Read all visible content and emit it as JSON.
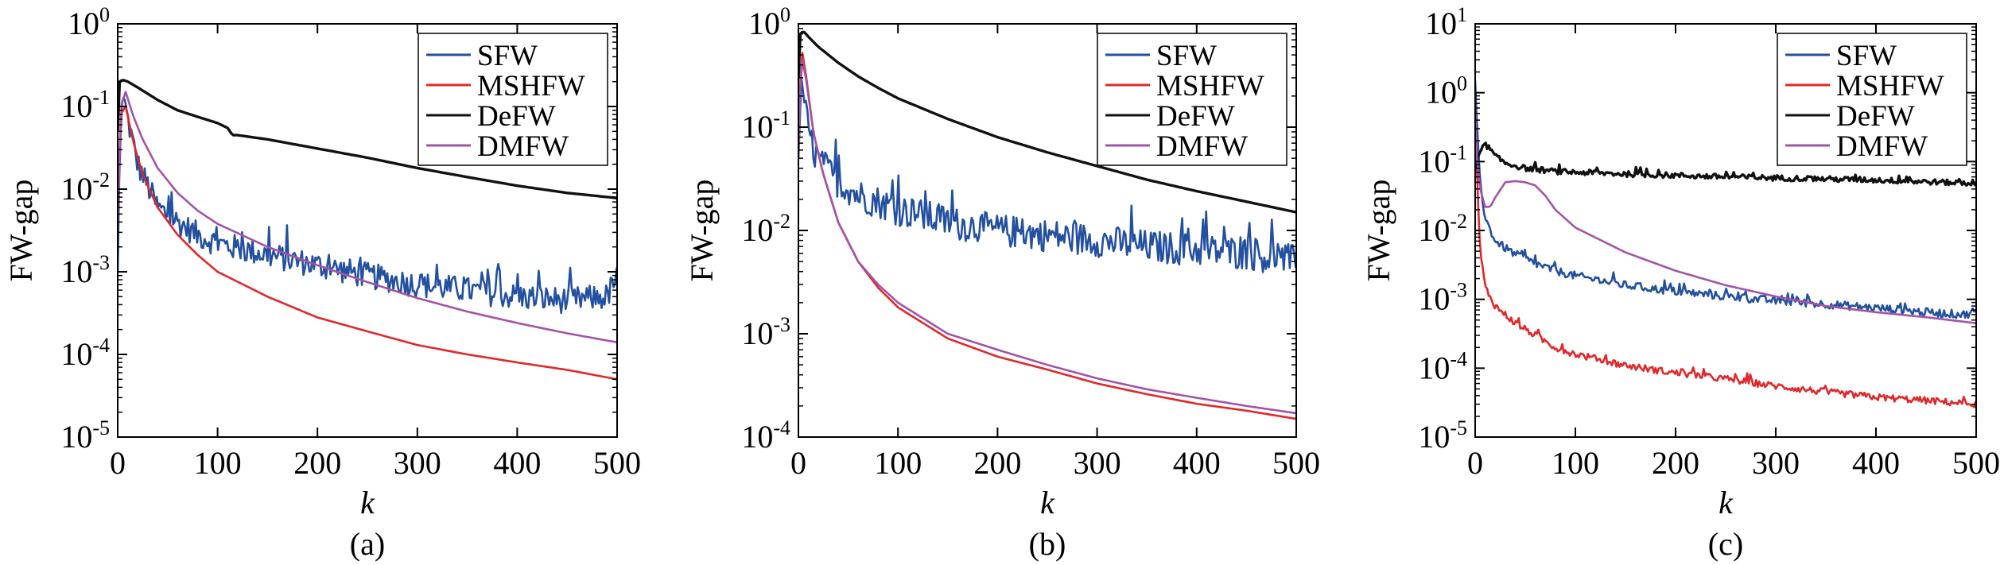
{
  "figure": {
    "ylabel": "FW-gap",
    "xlabel": "k",
    "series_colors": {
      "SFW": "#2350a0",
      "MSHFW": "#e0282a",
      "DeFW": "#000000",
      "DMFW": "#a254a8"
    }
  },
  "chart_data": [
    {
      "type": "line",
      "panel_label": "(a)",
      "xlabel": "k",
      "ylabel": "FW-gap",
      "yscale": "log",
      "xlim": [
        0,
        500
      ],
      "ylim_exp": [
        -5,
        0
      ],
      "xticks": [
        "0",
        "100",
        "200",
        "300",
        "400",
        "500"
      ],
      "yticks": [
        {
          "base": "10",
          "exp": "-5"
        },
        {
          "base": "10",
          "exp": "-4"
        },
        {
          "base": "10",
          "exp": "-3"
        },
        {
          "base": "10",
          "exp": "-2"
        },
        {
          "base": "10",
          "exp": "-1"
        },
        {
          "base": "10",
          "exp": "0"
        }
      ],
      "legend_position": "top-right",
      "grid": false,
      "series": [
        {
          "name": "SFW",
          "color": "#2350a0",
          "noise": 0.16,
          "x": [
            0,
            2,
            5,
            10,
            20,
            40,
            60,
            80,
            100,
            150,
            200,
            250,
            300,
            350,
            400,
            450,
            490,
            500
          ],
          "y": [
            0.001,
            0.03,
            0.15,
            0.07,
            0.02,
            0.006,
            0.004,
            0.0028,
            0.0022,
            0.0016,
            0.0012,
            0.0009,
            0.0007,
            0.0006,
            0.0005,
            0.00045,
            0.0005,
            0.0009
          ]
        },
        {
          "name": "MSHFW",
          "color": "#e0282a",
          "noise": 0,
          "x": [
            0,
            3,
            8,
            15,
            25,
            40,
            60,
            80,
            100,
            150,
            200,
            250,
            300,
            350,
            400,
            450,
            500
          ],
          "y": [
            0.004,
            0.08,
            0.1,
            0.04,
            0.015,
            0.006,
            0.0028,
            0.0016,
            0.001,
            0.0005,
            0.00028,
            0.00019,
            0.00013,
            0.0001,
            8e-05,
            6.5e-05,
            5e-05
          ]
        },
        {
          "name": "DeFW",
          "color": "#111111",
          "noise": 0,
          "x": [
            0,
            2,
            5,
            10,
            20,
            40,
            60,
            80,
            100,
            110,
            115,
            120,
            150,
            200,
            250,
            300,
            350,
            400,
            450,
            500
          ],
          "y": [
            0.05,
            0.2,
            0.21,
            0.2,
            0.17,
            0.12,
            0.09,
            0.075,
            0.063,
            0.055,
            0.045,
            0.045,
            0.04,
            0.031,
            0.024,
            0.018,
            0.014,
            0.011,
            0.009,
            0.0078
          ]
        },
        {
          "name": "DMFW",
          "color": "#a254a8",
          "noise": 0,
          "x": [
            0,
            3,
            8,
            15,
            25,
            40,
            60,
            80,
            100,
            150,
            200,
            250,
            300,
            350,
            400,
            450,
            500
          ],
          "y": [
            0.003,
            0.1,
            0.15,
            0.08,
            0.04,
            0.018,
            0.009,
            0.0055,
            0.0038,
            0.002,
            0.0012,
            0.00075,
            0.00048,
            0.00033,
            0.00024,
            0.00018,
            0.00014
          ]
        }
      ]
    },
    {
      "type": "line",
      "panel_label": "(b)",
      "xlabel": "k",
      "ylabel": "FW-gap",
      "yscale": "log",
      "xlim": [
        0,
        500
      ],
      "ylim_exp": [
        -4,
        0
      ],
      "xticks": [
        "0",
        "100",
        "200",
        "300",
        "400",
        "500"
      ],
      "yticks": [
        {
          "base": "10",
          "exp": "-4"
        },
        {
          "base": "10",
          "exp": "-3"
        },
        {
          "base": "10",
          "exp": "-2"
        },
        {
          "base": "10",
          "exp": "-1"
        },
        {
          "base": "10",
          "exp": "0"
        }
      ],
      "legend_position": "top-right",
      "grid": false,
      "series": [
        {
          "name": "SFW",
          "color": "#2350a0",
          "noise": 0.16,
          "x": [
            0,
            3,
            8,
            15,
            25,
            40,
            60,
            80,
            100,
            150,
            200,
            250,
            300,
            350,
            400,
            450,
            500
          ],
          "y": [
            0.05,
            0.3,
            0.12,
            0.06,
            0.04,
            0.03,
            0.022,
            0.019,
            0.016,
            0.012,
            0.01,
            0.009,
            0.008,
            0.007,
            0.0065,
            0.006,
            0.005
          ]
        },
        {
          "name": "MSHFW",
          "color": "#e0282a",
          "noise": 0,
          "x": [
            0,
            3,
            8,
            15,
            25,
            40,
            60,
            80,
            100,
            150,
            200,
            250,
            300,
            350,
            400,
            450,
            500
          ],
          "y": [
            0.06,
            0.6,
            0.3,
            0.09,
            0.035,
            0.012,
            0.005,
            0.0028,
            0.0018,
            0.0009,
            0.0006,
            0.00045,
            0.00033,
            0.00026,
            0.00021,
            0.00018,
            0.00015
          ]
        },
        {
          "name": "DeFW",
          "color": "#111111",
          "noise": 0,
          "x": [
            0,
            2,
            5,
            10,
            20,
            40,
            60,
            80,
            100,
            150,
            200,
            250,
            300,
            350,
            400,
            450,
            500
          ],
          "y": [
            0.3,
            0.8,
            0.85,
            0.75,
            0.6,
            0.42,
            0.31,
            0.24,
            0.19,
            0.12,
            0.08,
            0.057,
            0.042,
            0.031,
            0.024,
            0.019,
            0.015
          ]
        },
        {
          "name": "DMFW",
          "color": "#a254a8",
          "noise": 0,
          "x": [
            0,
            3,
            8,
            15,
            25,
            40,
            60,
            80,
            100,
            150,
            200,
            250,
            300,
            350,
            400,
            450,
            500
          ],
          "y": [
            0.06,
            0.5,
            0.28,
            0.09,
            0.035,
            0.012,
            0.005,
            0.003,
            0.002,
            0.001,
            0.0007,
            0.0005,
            0.00037,
            0.00029,
            0.00024,
            0.0002,
            0.00017
          ]
        }
      ]
    },
    {
      "type": "line",
      "panel_label": "(c)",
      "xlabel": "k",
      "ylabel": "FW-gap",
      "yscale": "log",
      "xlim": [
        0,
        500
      ],
      "ylim_exp": [
        -5,
        1
      ],
      "xticks": [
        "0",
        "100",
        "200",
        "300",
        "400",
        "500"
      ],
      "yticks": [
        {
          "base": "10",
          "exp": "-5"
        },
        {
          "base": "10",
          "exp": "-4"
        },
        {
          "base": "10",
          "exp": "-3"
        },
        {
          "base": "10",
          "exp": "-2"
        },
        {
          "base": "10",
          "exp": "-1"
        },
        {
          "base": "10",
          "exp": "0"
        },
        {
          "base": "10",
          "exp": "1"
        }
      ],
      "legend_position": "top-right",
      "grid": false,
      "series": [
        {
          "name": "SFW",
          "color": "#2350a0",
          "noise": 0.06,
          "x": [
            0,
            2,
            5,
            10,
            20,
            40,
            60,
            80,
            100,
            150,
            200,
            250,
            300,
            350,
            400,
            450,
            490,
            500
          ],
          "y": [
            1.5,
            0.3,
            0.05,
            0.015,
            0.007,
            0.0045,
            0.0033,
            0.0026,
            0.0022,
            0.0016,
            0.0013,
            0.0011,
            0.00095,
            0.00085,
            0.00075,
            0.00065,
            0.0006,
            0.0007
          ]
        },
        {
          "name": "MSHFW",
          "color": "#e0282a",
          "noise": 0.05,
          "x": [
            0,
            2,
            5,
            10,
            20,
            40,
            60,
            80,
            100,
            150,
            200,
            250,
            300,
            350,
            400,
            450,
            500
          ],
          "y": [
            0.8,
            0.05,
            0.005,
            0.0015,
            0.0008,
            0.00045,
            0.0003,
            0.0002,
            0.00016,
            0.00011,
            8.5e-05,
            7e-05,
            5.5e-05,
            4.5e-05,
            3.8e-05,
            3.4e-05,
            3e-05
          ]
        },
        {
          "name": "DeFW",
          "color": "#111111",
          "noise": 0.04,
          "x": [
            0,
            2,
            5,
            10,
            15,
            20,
            30,
            50,
            80,
            100,
            150,
            200,
            250,
            300,
            350,
            400,
            450,
            500
          ],
          "y": [
            0.08,
            0.11,
            0.14,
            0.18,
            0.15,
            0.12,
            0.095,
            0.08,
            0.072,
            0.07,
            0.066,
            0.063,
            0.06,
            0.058,
            0.056,
            0.054,
            0.051,
            0.048
          ]
        },
        {
          "name": "DMFW",
          "color": "#a254a8",
          "noise": 0,
          "x": [
            0,
            2,
            5,
            10,
            15,
            20,
            30,
            40,
            50,
            60,
            70,
            80,
            100,
            150,
            200,
            250,
            300,
            350,
            400,
            450,
            500
          ],
          "y": [
            0.5,
            0.1,
            0.04,
            0.022,
            0.022,
            0.03,
            0.05,
            0.052,
            0.05,
            0.045,
            0.032,
            0.02,
            0.011,
            0.0048,
            0.0026,
            0.0016,
            0.0011,
            0.0008,
            0.00065,
            0.00055,
            0.00045
          ]
        }
      ]
    }
  ]
}
